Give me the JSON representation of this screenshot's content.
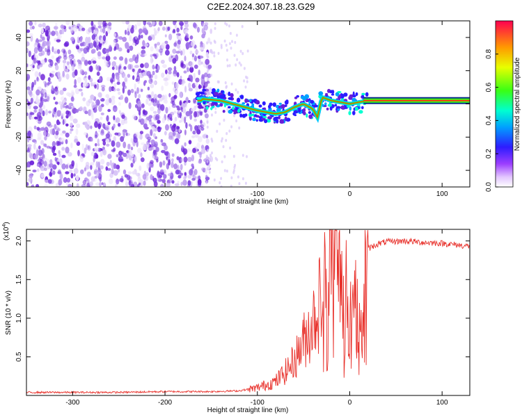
{
  "title": "C2E2.2024.307.18.23.G29",
  "colors": {
    "spectro_noise": "#7b3fe0",
    "line": "#e8302a",
    "frame": "#000000"
  },
  "chart_data": [
    {
      "type": "heatmap",
      "xlabel": "Height of straight line (km)",
      "ylabel": "Frequency (Hz)",
      "xlim": [
        -350,
        130
      ],
      "ylim": [
        -50,
        50
      ],
      "xticks": [
        -300,
        -200,
        -100,
        0,
        100
      ],
      "yticks": [
        -40,
        -20,
        0,
        20,
        40
      ],
      "colorbar": {
        "label": "Normalized spectral amplitude",
        "range": [
          0.0,
          1.0
        ],
        "ticks": [
          "0.0",
          "0.2",
          "0.4",
          "0.6",
          "0.8"
        ]
      },
      "ridge": {
        "x": [
          -160,
          -140,
          -120,
          -100,
          -80,
          -70,
          -60,
          -50,
          -40,
          -35,
          -30,
          -20,
          -10,
          0,
          10,
          20,
          40,
          60,
          80,
          100,
          130
        ],
        "y": [
          3,
          2,
          -1,
          -4,
          -6,
          -5,
          -2,
          0,
          -3,
          -8,
          4,
          2,
          1,
          0,
          1,
          2,
          2,
          2,
          2,
          2,
          2
        ]
      }
    },
    {
      "type": "line",
      "xlabel": "Height of straight line (km)",
      "ylabel": "SNR (10 * v/v)",
      "scale_label": "(x10",
      "scale_exp": "4",
      "scale_close": ")",
      "xlim": [
        -350,
        130
      ],
      "ylim": [
        0,
        2.15
      ],
      "xticks": [
        -300,
        -200,
        -100,
        0,
        100
      ],
      "yticks": [
        "0.5",
        "1.0",
        "1.5",
        "2.0"
      ],
      "series": [
        {
          "x": [
            -350,
            -300,
            -250,
            -200,
            -150,
            -120,
            -100,
            -80,
            -70,
            -60,
            -50,
            -40,
            -30,
            -25,
            -20,
            -15,
            -10,
            -5,
            0,
            5,
            10,
            15,
            20,
            30,
            40,
            60,
            80,
            100,
            130
          ],
          "y": [
            0.04,
            0.04,
            0.04,
            0.05,
            0.05,
            0.06,
            0.1,
            0.18,
            0.3,
            0.45,
            0.7,
            0.95,
            1.3,
            1.65,
            1.9,
            1.7,
            1.6,
            1.45,
            0.9,
            1.3,
            1.0,
            1.6,
            1.9,
            1.96,
            1.99,
            2.0,
            1.98,
            1.97,
            1.93
          ]
        }
      ]
    }
  ]
}
